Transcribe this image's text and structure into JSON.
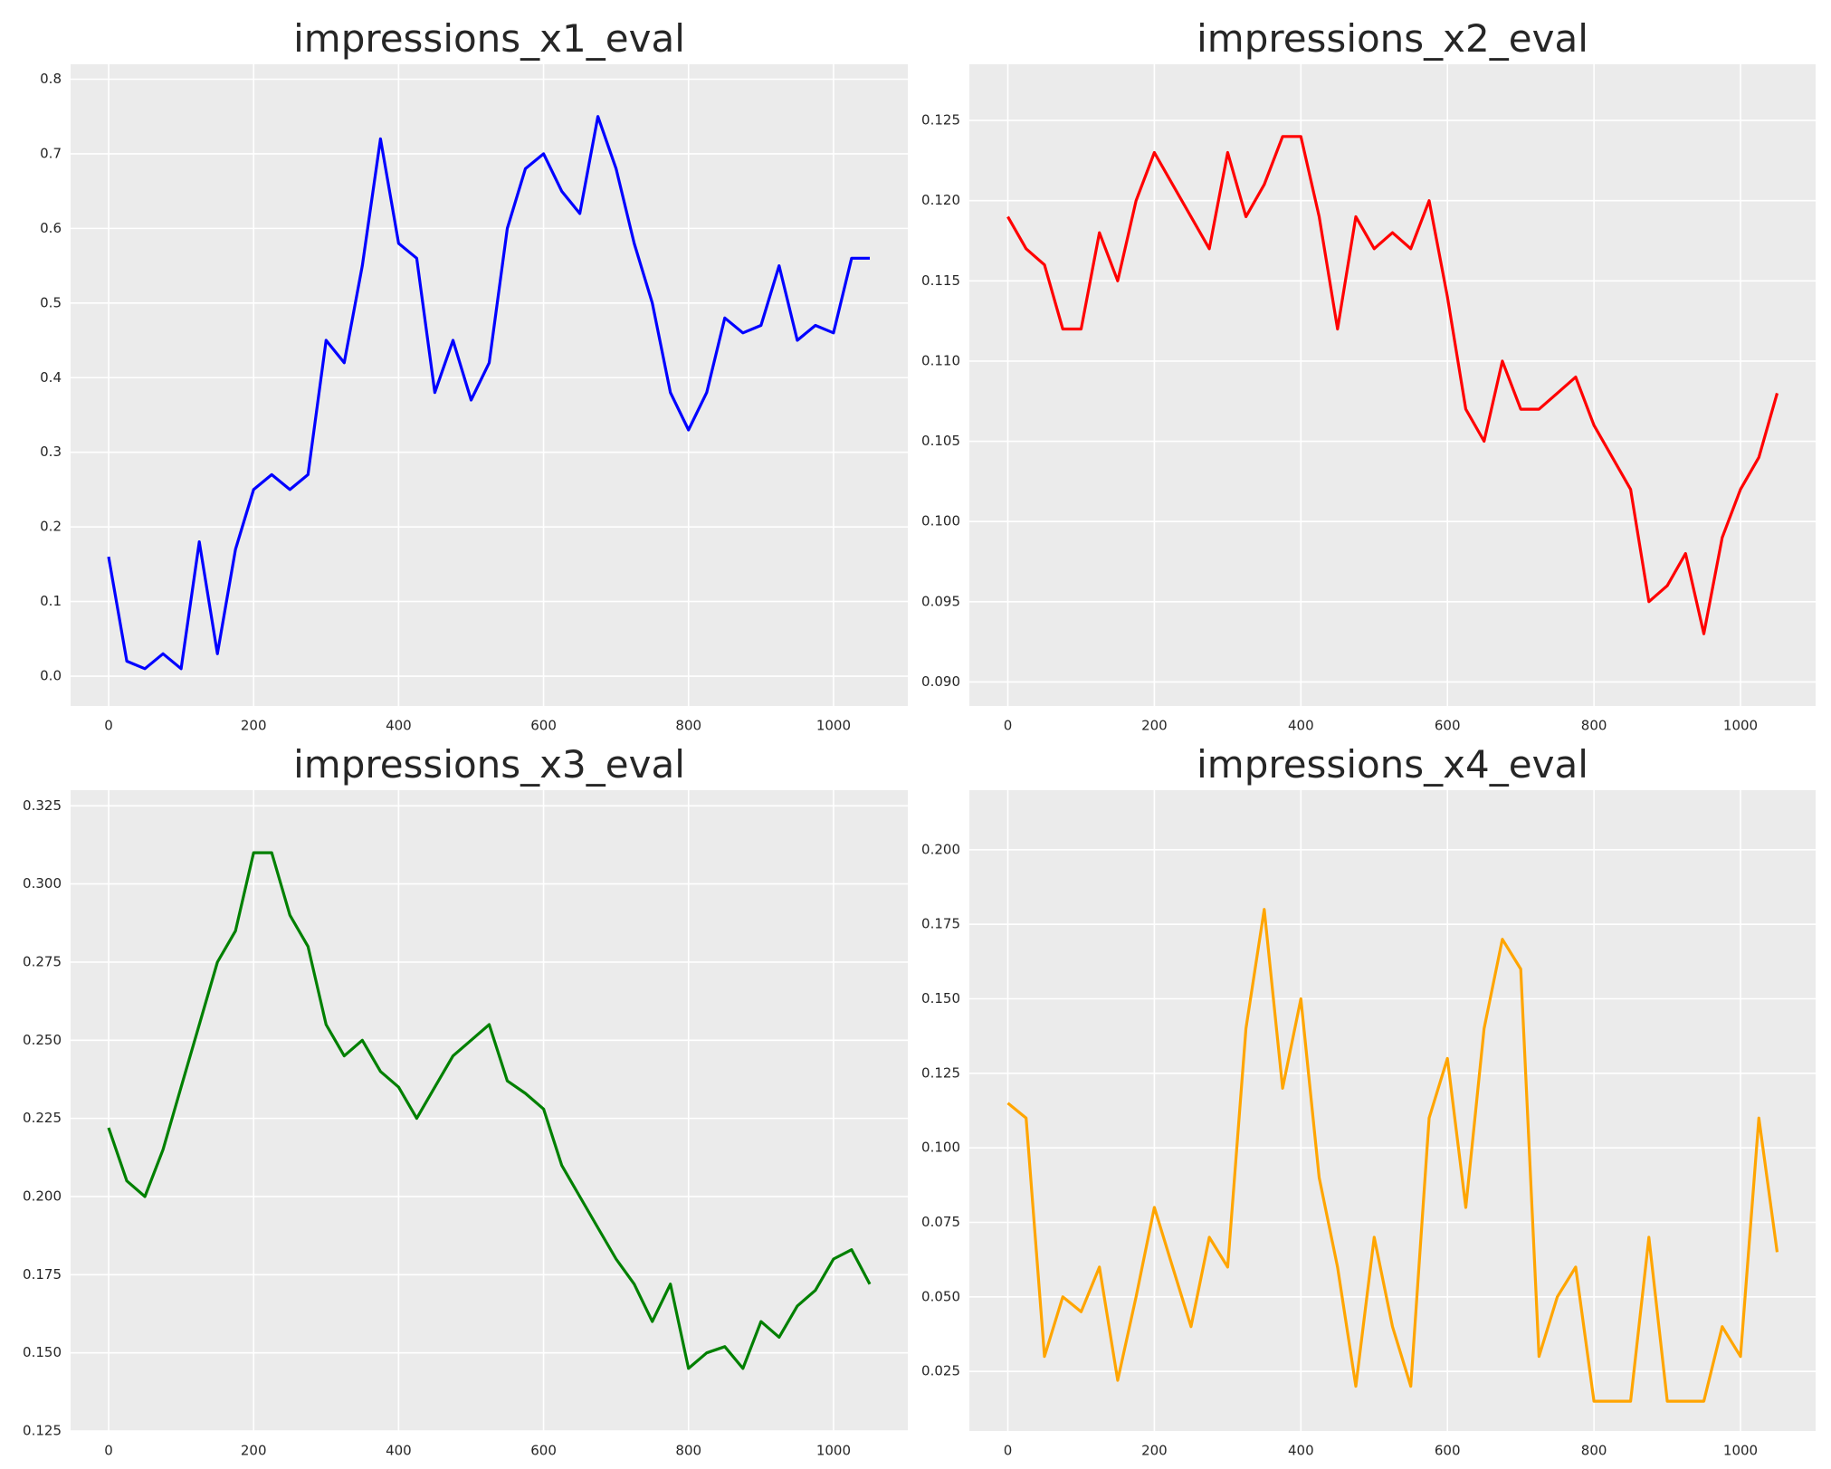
{
  "chart_data": [
    {
      "type": "line",
      "title": "impressions_x1_eval",
      "color": "#0000ff",
      "x": [
        0,
        25,
        50,
        75,
        100,
        125,
        150,
        175,
        200,
        225,
        250,
        275,
        300,
        325,
        350,
        375,
        400,
        425,
        450,
        475,
        500,
        525,
        550,
        575,
        600,
        625,
        650,
        675,
        700,
        725,
        750,
        775,
        800,
        825,
        850,
        875,
        900,
        925,
        950,
        975,
        1000,
        1025,
        1050
      ],
      "values": [
        0.16,
        0.02,
        0.01,
        0.03,
        0.01,
        0.18,
        0.03,
        0.17,
        0.25,
        0.27,
        0.25,
        0.27,
        0.45,
        0.42,
        0.55,
        0.72,
        0.58,
        0.56,
        0.38,
        0.45,
        0.37,
        0.42,
        0.6,
        0.68,
        0.7,
        0.65,
        0.62,
        0.75,
        0.68,
        0.58,
        0.5,
        0.38,
        0.33,
        0.38,
        0.48,
        0.46,
        0.47,
        0.55,
        0.45,
        0.47,
        0.46,
        0.56,
        0.56
      ],
      "xlim": [
        -52.5,
        1102.5
      ],
      "xticks": [
        0,
        200,
        400,
        600,
        800,
        1000
      ],
      "ylim": [
        -0.04,
        0.82
      ],
      "yticks": [
        {
          "value": 0,
          "label": "0.0"
        },
        0.1,
        0.2,
        0.3,
        0.4,
        0.5,
        0.6,
        0.7,
        0.8
      ],
      "grid": true
    },
    {
      "type": "line",
      "title": "impressions_x2_eval",
      "color": "#ff0000",
      "x": [
        0,
        25,
        50,
        75,
        100,
        125,
        150,
        175,
        200,
        225,
        250,
        275,
        300,
        325,
        350,
        375,
        400,
        425,
        450,
        475,
        500,
        525,
        550,
        575,
        600,
        625,
        650,
        675,
        700,
        725,
        750,
        775,
        800,
        825,
        850,
        875,
        900,
        925,
        950,
        975,
        1000,
        1025,
        1050
      ],
      "values": [
        0.119,
        0.117,
        0.116,
        0.112,
        0.112,
        0.118,
        0.115,
        0.12,
        0.123,
        0.121,
        0.119,
        0.117,
        0.123,
        0.119,
        0.121,
        0.124,
        0.124,
        0.119,
        0.112,
        0.119,
        0.117,
        0.118,
        0.117,
        0.12,
        0.114,
        0.107,
        0.105,
        0.11,
        0.107,
        0.107,
        0.108,
        0.109,
        0.106,
        0.104,
        0.102,
        0.095,
        0.096,
        0.098,
        0.093,
        0.099,
        0.102,
        0.104,
        0.108
      ],
      "xlim": [
        -52.5,
        1102.5
      ],
      "xticks": [
        0,
        200,
        400,
        600,
        800,
        1000
      ],
      "ylim": [
        0.0885,
        0.1285
      ],
      "yticks": [
        {
          "value": 0.09,
          "label": "0.090"
        },
        0.095,
        {
          "value": 0.1,
          "label": "0.100"
        },
        0.105,
        {
          "value": 0.11,
          "label": "0.110"
        },
        0.115,
        {
          "value": 0.12,
          "label": "0.120"
        },
        0.125
      ],
      "grid": true
    },
    {
      "type": "line",
      "title": "impressions_x3_eval",
      "color": "#008000",
      "x": [
        0,
        25,
        50,
        75,
        100,
        125,
        150,
        175,
        200,
        225,
        250,
        275,
        300,
        325,
        350,
        375,
        400,
        425,
        450,
        475,
        500,
        525,
        550,
        575,
        600,
        625,
        650,
        675,
        700,
        725,
        750,
        775,
        800,
        825,
        850,
        875,
        900,
        925,
        950,
        975,
        1000,
        1025,
        1050
      ],
      "values": [
        0.222,
        0.205,
        0.2,
        0.215,
        0.235,
        0.255,
        0.275,
        0.285,
        0.31,
        0.31,
        0.29,
        0.28,
        0.255,
        0.245,
        0.25,
        0.24,
        0.235,
        0.225,
        0.235,
        0.245,
        0.25,
        0.255,
        0.237,
        0.233,
        0.228,
        0.21,
        0.2,
        0.19,
        0.18,
        0.172,
        0.16,
        0.172,
        0.145,
        0.15,
        0.152,
        0.145,
        0.16,
        0.155,
        0.165,
        0.17,
        0.18,
        0.183,
        0.172
      ],
      "xlim": [
        -52.5,
        1102.5
      ],
      "xticks": [
        0,
        200,
        400,
        600,
        800,
        1000
      ],
      "ylim": [
        0.125,
        0.33
      ],
      "yticks": [
        0.125,
        {
          "value": 0.15,
          "label": "0.150"
        },
        0.175,
        {
          "value": 0.2,
          "label": "0.200"
        },
        0.225,
        {
          "value": 0.25,
          "label": "0.250"
        },
        0.275,
        {
          "value": 0.3,
          "label": "0.300"
        },
        0.325
      ],
      "grid": true
    },
    {
      "type": "line",
      "title": "impressions_x4_eval",
      "color": "#ffa500",
      "x": [
        0,
        25,
        50,
        75,
        100,
        125,
        150,
        175,
        200,
        225,
        250,
        275,
        300,
        325,
        350,
        375,
        400,
        425,
        450,
        475,
        500,
        525,
        550,
        575,
        600,
        625,
        650,
        675,
        700,
        725,
        750,
        775,
        800,
        825,
        850,
        875,
        900,
        925,
        950,
        975,
        1000,
        1025,
        1050
      ],
      "values": [
        0.115,
        0.11,
        0.03,
        0.05,
        0.045,
        0.06,
        0.022,
        0.05,
        0.08,
        0.06,
        0.04,
        0.07,
        0.06,
        0.14,
        0.18,
        0.12,
        0.15,
        0.09,
        0.06,
        0.02,
        0.07,
        0.04,
        0.02,
        0.11,
        0.13,
        0.08,
        0.14,
        0.17,
        0.16,
        0.03,
        0.05,
        0.06,
        0.015,
        0.015,
        0.015,
        0.07,
        0.015,
        0.015,
        0.015,
        0.04,
        0.03,
        0.11,
        0.065
      ],
      "xlim": [
        -52.5,
        1102.5
      ],
      "xticks": [
        0,
        200,
        400,
        600,
        800,
        1000
      ],
      "ylim": [
        0.005,
        0.22
      ],
      "yticks": [
        0.025,
        {
          "value": 0.05,
          "label": "0.050"
        },
        0.075,
        {
          "value": 0.1,
          "label": "0.100"
        },
        0.125,
        {
          "value": 0.15,
          "label": "0.150"
        },
        0.175,
        {
          "value": 0.2,
          "label": "0.200"
        }
      ],
      "grid": true
    }
  ]
}
